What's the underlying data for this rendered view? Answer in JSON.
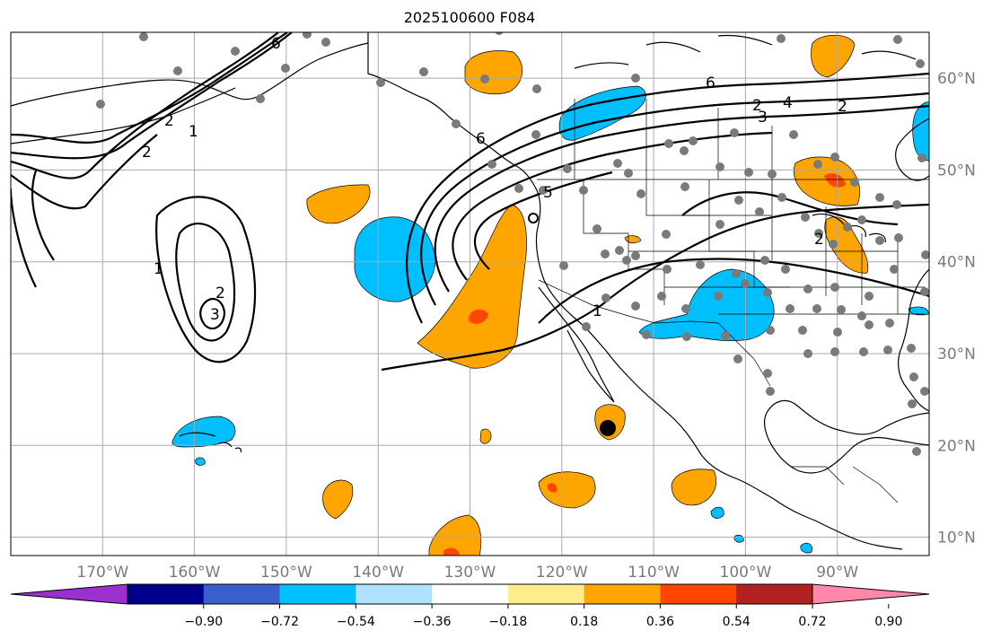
{
  "title": "2025100600 F084",
  "map": {
    "lon_range": [
      180,
      80
    ],
    "lat_range": [
      8,
      65
    ],
    "lon_ticks": [
      {
        "lon": 170,
        "label": "170°W"
      },
      {
        "lon": 160,
        "label": "160°W"
      },
      {
        "lon": 150,
        "label": "150°W"
      },
      {
        "lon": 140,
        "label": "140°W"
      },
      {
        "lon": 130,
        "label": "130°W"
      },
      {
        "lon": 120,
        "label": "120°W"
      },
      {
        "lon": 110,
        "label": "110°W"
      },
      {
        "lon": 100,
        "label": "100°W"
      },
      {
        "lon": 90,
        "label": "90°W"
      }
    ],
    "lat_ticks": [
      {
        "lat": 60,
        "label": "60°N"
      },
      {
        "lat": 50,
        "label": "50°N"
      },
      {
        "lat": 40,
        "label": "40°N"
      },
      {
        "lat": 30,
        "label": "30°N"
      },
      {
        "lat": 20,
        "label": "20°N"
      },
      {
        "lat": 10,
        "label": "10°N"
      }
    ],
    "contour_labels": [
      "1",
      "2",
      "3",
      "4",
      "5",
      "6"
    ]
  },
  "colorbar": {
    "ticks": [
      "−0.90",
      "−0.72",
      "−0.54",
      "−0.36",
      "−0.18",
      "0.18",
      "0.36",
      "0.54",
      "0.72",
      "0.90"
    ],
    "colors": [
      "#9b30d0",
      "#00008b",
      "#3a5fcd",
      "#00bfff",
      "#b0e2ff",
      "#ffffff",
      "#ffec8b",
      "#ffa500",
      "#ff4500",
      "#b22222",
      "#ff88aa"
    ]
  }
}
